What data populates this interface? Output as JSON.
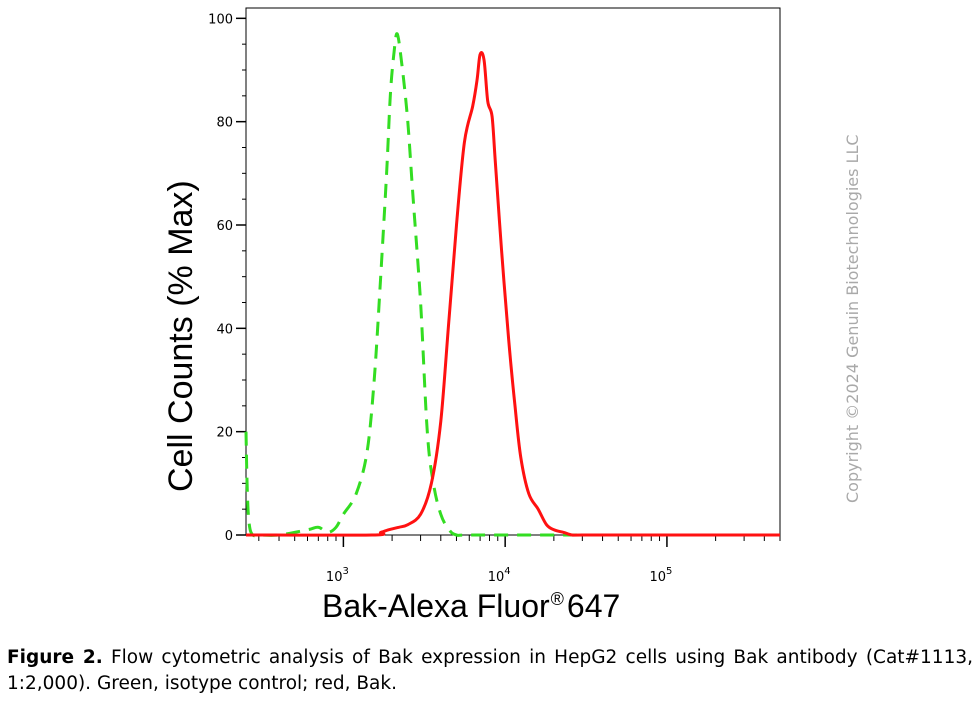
{
  "chart_data": {
    "type": "area",
    "xlabel_main": "Bak-Alexa Fluor",
    "xlabel_sup": "®",
    "xlabel_tail": "647",
    "ylabel": "Cell Counts (% Max)",
    "x_scale": "log",
    "xlim": [
      250,
      500000
    ],
    "ylim": [
      0,
      102
    ],
    "y_ticks": [
      "0",
      "20",
      "40",
      "60",
      "80",
      "100"
    ],
    "x_ticks": [
      {
        "base": "10",
        "exp": "3",
        "value": 1000
      },
      {
        "base": "10",
        "exp": "4",
        "value": 10000
      },
      {
        "base": "10",
        "exp": "5",
        "value": 100000
      }
    ],
    "series": [
      {
        "style": "dashed",
        "color": "#33dd22",
        "x": [
          250,
          255,
          262,
          275,
          300,
          400,
          600,
          700,
          800,
          900,
          1000,
          1200,
          1400,
          1550,
          1700,
          1850,
          1950,
          2050,
          2150,
          2300,
          2500,
          2700,
          3000,
          3300,
          3600,
          4000,
          4500,
          5000,
          6000,
          20000,
          500000
        ],
        "y": [
          20,
          8,
          2,
          0,
          0,
          0,
          1,
          1.5,
          0.5,
          1.5,
          4,
          8,
          16,
          30,
          50,
          70,
          85,
          93,
          97,
          91,
          80,
          65,
          45,
          20,
          10,
          4,
          1,
          0,
          0,
          0,
          0
        ]
      },
      {
        "style": "solid",
        "color": "#ff1111",
        "x": [
          250,
          1500,
          1700,
          1900,
          2200,
          2500,
          3000,
          3500,
          4000,
          4500,
          5000,
          5600,
          6300,
          6700,
          7000,
          7400,
          7800,
          8300,
          8700,
          9500,
          10500,
          11500,
          12500,
          14000,
          16000,
          18000,
          20000,
          23000,
          26000,
          30000,
          100000,
          500000
        ],
        "y": [
          0,
          0,
          0.5,
          1,
          1.5,
          2,
          4,
          10,
          22,
          42,
          60,
          76,
          83,
          88,
          93,
          92,
          84,
          81,
          72,
          55,
          38,
          25,
          15,
          8,
          5,
          2,
          1,
          0.5,
          0,
          0,
          0,
          0
        ]
      }
    ]
  },
  "watermark": "Copyright ©2024 Genuin Biotechnologies LLC",
  "caption": {
    "label": "Figure 2.",
    "text": "Flow cytometric analysis of Bak expression in HepG2 cells using Bak antibody (Cat#1113, 1:2,000). Green, isotype control; red, Bak."
  }
}
